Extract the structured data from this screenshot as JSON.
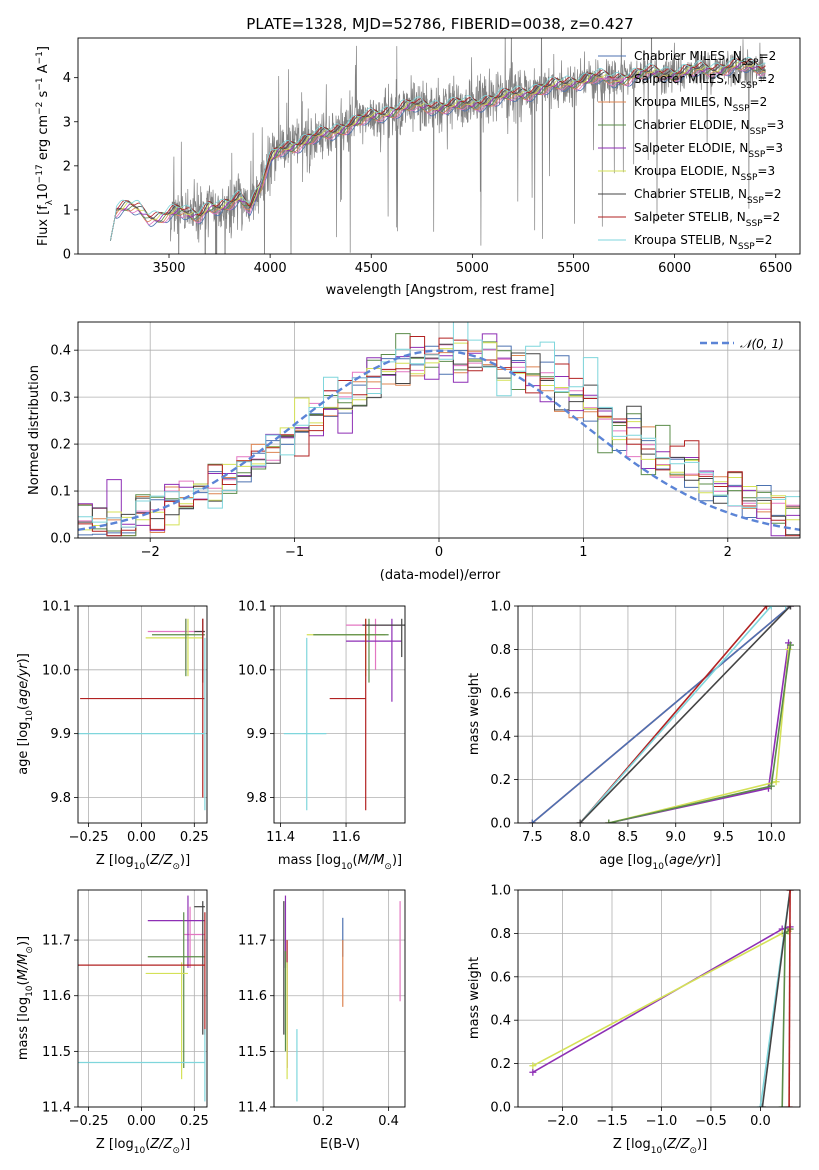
{
  "title": "PLATE=1328, MJD=52786, FIBERID=0038, z=0.427",
  "colors": {
    "Chabrier MILES": "#4c72b0",
    "Salpeter MILES": "#e377c2",
    "Kroupa MILES": "#dd8452",
    "Chabrier ELODIE": "#5b8c4a",
    "Salpeter ELODIE": "#8e2fb5",
    "Kroupa ELODIE": "#d4e157",
    "Chabrier STELIB": "#444444",
    "Salpeter STELIB": "#b22222",
    "Kroupa STELIB": "#7fd6dc",
    "data": "#808080",
    "normal": "#5b84d6"
  },
  "chart_data": [
    {
      "type": "line",
      "title": "PLATE=1328, MJD=52786, FIBERID=0038, z=0.427",
      "xlabel": "wavelength [Angstrom, rest frame]",
      "ylabel": "Flux [fλ10⁻¹⁷ erg cm⁻² s⁻¹ A⁻¹]",
      "xlim": [
        3050,
        6620
      ],
      "ylim": [
        0,
        4.9
      ],
      "xticks": [
        3500,
        4000,
        4500,
        5000,
        5500,
        6000,
        6500
      ],
      "yticks": [
        0,
        1,
        2,
        3,
        4
      ],
      "legend_loc": "upper right",
      "legend": [
        "Chabrier MILES, NSSP=2",
        "Salpeter MILES, NSSP=2",
        "Kroupa MILES, NSSP=2",
        "Chabrier ELODIE, NSSP=3",
        "Salpeter ELODIE, NSSP=3",
        "Kroupa ELODIE, NSSP=3",
        "Chabrier STELIB, NSSP=2",
        "Salpeter STELIB, NSSP=2",
        "Kroupa STELIB, NSSP=2"
      ],
      "model_continuum": {
        "x": [
          3210,
          3240,
          3300,
          3350,
          3400,
          3450,
          3500,
          3550,
          3600,
          3650,
          3700,
          3750,
          3800,
          3850,
          3900,
          3950,
          4000,
          4050,
          4100,
          4200,
          4300,
          4400,
          4500,
          4600,
          4700,
          4800,
          4900,
          5000,
          5100,
          5200,
          5300,
          5400,
          5500,
          5600,
          5700,
          5800,
          5900,
          6000,
          6100,
          6200,
          6300,
          6400,
          6450
        ],
        "y": [
          0.3,
          1.0,
          1.05,
          1.0,
          0.85,
          0.85,
          0.9,
          0.95,
          0.9,
          0.9,
          1.1,
          1.0,
          1.1,
          1.3,
          1.1,
          1.5,
          2.1,
          2.35,
          2.45,
          2.6,
          2.75,
          2.95,
          3.1,
          3.25,
          3.35,
          3.35,
          3.35,
          3.4,
          3.5,
          3.6,
          3.7,
          3.8,
          3.9,
          4.0,
          3.95,
          4.05,
          4.1,
          4.1,
          4.15,
          4.2,
          4.25,
          4.25,
          4.2
        ]
      },
      "data_range": [
        3500,
        6450
      ]
    },
    {
      "type": "line",
      "xlabel": "(data-model)/error",
      "ylabel": "Normed distribution",
      "xlim": [
        -2.5,
        2.5
      ],
      "ylim": [
        0,
        0.46
      ],
      "xticks": [
        -2,
        -1,
        0,
        1,
        2
      ],
      "yticks": [
        0.0,
        0.1,
        0.2,
        0.3,
        0.4
      ],
      "legend_loc": "upper right",
      "legend": [
        "𝒩(0, 1)"
      ],
      "hist_center": 0.15,
      "hist_sigma": 1.06,
      "hist_peak": 0.38,
      "bin_width": 0.1
    },
    {
      "type": "scatter",
      "xlabel": "Z [log10(Z/Z⊙)]",
      "ylabel": "age  [log10(age/yr)]",
      "xlim": [
        -0.3,
        0.31
      ],
      "ylim": [
        9.76,
        10.1
      ],
      "xticks": [
        -0.25,
        0.0,
        0.25
      ],
      "yticks": [
        9.8,
        9.9,
        10.0,
        10.1
      ],
      "crosses": [
        {
          "model": "Salpeter MILES",
          "x": 0.21,
          "y": 10.06,
          "xmin": 0.03,
          "xmax": 0.3,
          "ymin": 10.0,
          "ymax": 10.08
        },
        {
          "model": "Kroupa ELODIE",
          "x": 0.22,
          "y": 10.05,
          "xmin": 0.02,
          "xmax": 0.29,
          "ymin": 9.99,
          "ymax": 10.08
        },
        {
          "model": "Chabrier ELODIE",
          "x": 0.21,
          "y": 10.055,
          "xmin": 0.05,
          "xmax": 0.3,
          "ymin": 9.99,
          "ymax": 10.08
        },
        {
          "model": "Chabrier STELIB",
          "x": 0.29,
          "y": 10.06,
          "xmin": 0.25,
          "xmax": 0.3,
          "ymin": 9.98,
          "ymax": 10.08
        },
        {
          "model": "Salpeter STELIB",
          "x": 0.29,
          "y": 9.955,
          "xmin": -0.29,
          "xmax": 0.3,
          "ymin": 9.8,
          "ymax": 10.08
        },
        {
          "model": "Kroupa STELIB",
          "x": 0.3,
          "y": 9.9,
          "xmin": -0.3,
          "xmax": 0.3,
          "ymin": 9.78,
          "ymax": 10.05
        }
      ]
    },
    {
      "type": "scatter",
      "xlabel": "mass [log10(M/M⊙)]",
      "ylabel": "",
      "xlim": [
        11.38,
        11.78
      ],
      "ylim": [
        9.76,
        10.1
      ],
      "xticks": [
        11.4,
        11.6
      ],
      "yticks": [
        9.8,
        9.9,
        10.0,
        10.1
      ],
      "crosses": [
        {
          "model": "Salpeter MILES",
          "x": 11.69,
          "y": 10.07,
          "xmin": 11.6,
          "xmax": 11.77,
          "ymin": 10.0,
          "ymax": 10.08
        },
        {
          "model": "Kroupa ELODIE",
          "x": 11.66,
          "y": 10.055,
          "xmin": 11.48,
          "xmax": 11.72,
          "ymin": 9.99,
          "ymax": 10.08
        },
        {
          "model": "Chabrier ELODIE",
          "x": 11.67,
          "y": 10.055,
          "xmin": 11.5,
          "xmax": 11.73,
          "ymin": 9.98,
          "ymax": 10.08
        },
        {
          "model": "Salpeter ELODIE",
          "x": 11.74,
          "y": 10.045,
          "xmin": 11.6,
          "xmax": 11.77,
          "ymin": 9.95,
          "ymax": 10.08
        },
        {
          "model": "Chabrier STELIB",
          "x": 11.77,
          "y": 10.07,
          "xmin": 11.65,
          "xmax": 11.78,
          "ymin": 10.02,
          "ymax": 10.08
        },
        {
          "model": "Salpeter STELIB",
          "x": 11.66,
          "y": 9.955,
          "xmin": 11.55,
          "xmax": 11.66,
          "ymin": 9.78,
          "ymax": 10.08
        },
        {
          "model": "Kroupa STELIB",
          "x": 11.48,
          "y": 9.9,
          "xmin": 11.41,
          "xmax": 11.54,
          "ymin": 9.78,
          "ymax": 10.05
        }
      ]
    },
    {
      "type": "line",
      "xlabel": "age  [log10(age/yr)]",
      "ylabel": "mass weight",
      "xlim": [
        7.35,
        10.3
      ],
      "ylim": [
        0,
        1
      ],
      "xticks": [
        7.5,
        8.0,
        8.5,
        9.0,
        9.5,
        10.0
      ],
      "yticks": [
        0.0,
        0.2,
        0.4,
        0.6,
        0.8,
        1.0
      ],
      "series": [
        {
          "model": "Kroupa MILES",
          "x": [
            7.5,
            10.2
          ],
          "y": [
            0.0,
            1.0
          ]
        },
        {
          "model": "Salpeter MILES",
          "x": [
            7.5,
            10.2
          ],
          "y": [
            0.0,
            1.0
          ]
        },
        {
          "model": "Chabrier MILES",
          "x": [
            7.5,
            10.2
          ],
          "y": [
            0.0,
            1.0
          ]
        },
        {
          "model": "Salpeter STELIB",
          "x": [
            8.0,
            9.95,
            10.15
          ],
          "y": [
            0.0,
            1.0,
            1.0
          ]
        },
        {
          "model": "Kroupa STELIB",
          "x": [
            8.0,
            10.0,
            10.15
          ],
          "y": [
            0.0,
            1.0,
            1.0
          ]
        },
        {
          "model": "Chabrier STELIB",
          "x": [
            8.0,
            10.2
          ],
          "y": [
            0.0,
            1.0
          ]
        },
        {
          "model": "Salpeter ELODIE",
          "x": [
            8.3,
            9.97,
            10.18
          ],
          "y": [
            0.0,
            0.16,
            0.83
          ]
        },
        {
          "model": "Kroupa ELODIE",
          "x": [
            8.3,
            10.05,
            10.18
          ],
          "y": [
            0.0,
            0.19,
            0.8
          ]
        },
        {
          "model": "Chabrier ELODIE",
          "x": [
            8.3,
            10.0,
            10.2
          ],
          "y": [
            0.0,
            0.17,
            0.82
          ]
        }
      ]
    },
    {
      "type": "scatter",
      "xlabel": "Z [log10(Z/Z⊙)]",
      "ylabel": "mass [log10(M/M⊙)]",
      "xlim": [
        -0.3,
        0.31
      ],
      "ylim": [
        11.4,
        11.79
      ],
      "xticks": [
        -0.25,
        0.0,
        0.25
      ],
      "yticks": [
        11.4,
        11.5,
        11.6,
        11.7
      ],
      "crosses": [
        {
          "model": "Salpeter MILES",
          "x": 0.23,
          "y": 11.71,
          "xmin": 0.2,
          "xmax": 0.3,
          "ymin": 11.65,
          "ymax": 11.76
        },
        {
          "model": "Salpeter ELODIE",
          "x": 0.22,
          "y": 11.735,
          "xmin": 0.03,
          "xmax": 0.3,
          "ymin": 11.65,
          "ymax": 11.78
        },
        {
          "model": "Chabrier ELODIE",
          "x": 0.2,
          "y": 11.67,
          "xmin": 0.03,
          "xmax": 0.3,
          "ymin": 11.47,
          "ymax": 11.75
        },
        {
          "model": "Kroupa ELODIE",
          "x": 0.19,
          "y": 11.64,
          "xmin": 0.02,
          "xmax": 0.22,
          "ymin": 11.45,
          "ymax": 11.66
        },
        {
          "model": "Chabrier STELIB",
          "x": 0.29,
          "y": 11.76,
          "xmin": 0.25,
          "xmax": 0.3,
          "ymin": 11.53,
          "ymax": 11.77
        },
        {
          "model": "Salpeter STELIB",
          "x": 0.3,
          "y": 11.655,
          "xmin": -0.3,
          "xmax": 0.3,
          "ymin": 11.53,
          "ymax": 11.75
        },
        {
          "model": "Kroupa STELIB",
          "x": 0.3,
          "y": 11.48,
          "xmin": -0.3,
          "xmax": 0.3,
          "ymin": 11.41,
          "ymax": 11.54
        }
      ]
    },
    {
      "type": "scatter",
      "xlabel": "E(B-V)",
      "ylabel": "",
      "xlim": [
        0.05,
        0.45
      ],
      "ylim": [
        11.4,
        11.79
      ],
      "xticks": [
        0.2,
        0.4
      ],
      "yticks": [
        11.4,
        11.5,
        11.6,
        11.7
      ],
      "vlines": [
        {
          "model": "Chabrier MILES",
          "x": 0.26,
          "ymin": 11.67,
          "ymax": 11.74
        },
        {
          "model": "Kroupa MILES",
          "x": 0.26,
          "ymin": 11.58,
          "ymax": 11.7
        },
        {
          "model": "Salpeter MILES",
          "x": 0.435,
          "ymin": 11.59,
          "ymax": 11.77
        },
        {
          "model": "Salpeter ELODIE",
          "x": 0.085,
          "ymin": 11.65,
          "ymax": 11.78
        },
        {
          "model": "Chabrier STELIB",
          "x": 0.08,
          "ymin": 11.53,
          "ymax": 11.77
        },
        {
          "model": "Salpeter STELIB",
          "x": 0.09,
          "ymin": 11.47,
          "ymax": 11.7
        },
        {
          "model": "Kroupa ELODIE",
          "x": 0.09,
          "ymin": 11.45,
          "ymax": 11.66
        },
        {
          "model": "Chabrier ELODIE",
          "x": 0.085,
          "ymin": 11.5,
          "ymax": 11.68
        },
        {
          "model": "Kroupa STELIB",
          "x": 0.12,
          "ymin": 11.41,
          "ymax": 11.54
        }
      ]
    },
    {
      "type": "line",
      "xlabel": "Z [log10(Z/Z⊙)]",
      "ylabel": "mass weight",
      "xlim": [
        -2.45,
        0.4
      ],
      "ylim": [
        0,
        1
      ],
      "xticks": [
        -2.0,
        -1.5,
        -1.0,
        -0.5,
        0.0
      ],
      "yticks": [
        0.0,
        0.2,
        0.4,
        0.6,
        0.8,
        1.0
      ],
      "series": [
        {
          "model": "Salpeter ELODIE",
          "x": [
            -2.3,
            0.22,
            0.3
          ],
          "y": [
            0.16,
            0.82,
            0.83
          ]
        },
        {
          "model": "Kroupa ELODIE",
          "x": [
            -2.3,
            0.22,
            0.28
          ],
          "y": [
            0.19,
            0.8,
            0.81
          ]
        },
        {
          "model": "Chabrier ELODIE",
          "x": [
            0.22,
            0.25,
            0.3
          ],
          "y": [
            0.0,
            0.8,
            0.82
          ]
        },
        {
          "model": "Kroupa STELIB",
          "x": [
            0.0,
            0.3
          ],
          "y": [
            0.0,
            1.0
          ]
        },
        {
          "model": "Chabrier STELIB",
          "x": [
            0.02,
            0.3
          ],
          "y": [
            0.0,
            1.0
          ]
        },
        {
          "model": "Salpeter STELIB",
          "x": [
            0.29,
            0.3
          ],
          "y": [
            0.0,
            1.0
          ]
        }
      ]
    }
  ]
}
